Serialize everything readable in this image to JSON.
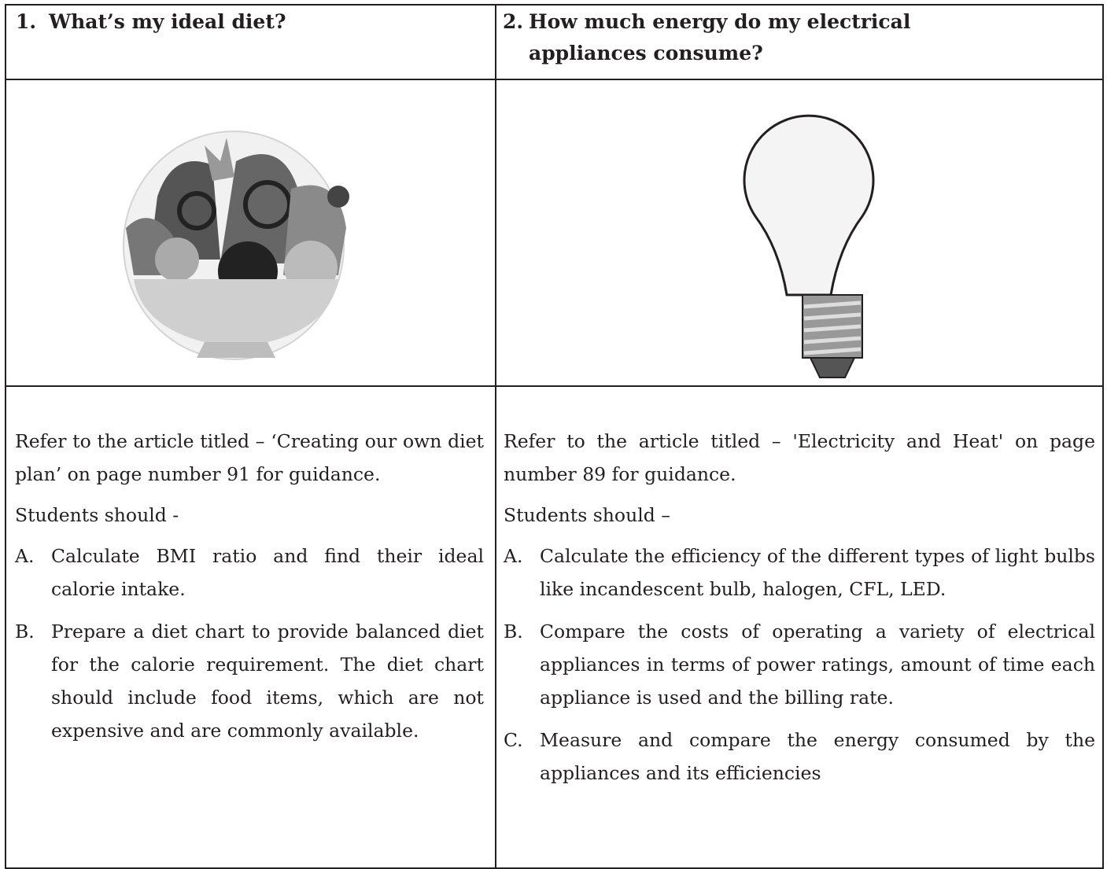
{
  "columns": [
    {
      "heading": {
        "number": "1.",
        "text": "What’s my ideal diet?"
      },
      "intro": "Refer to the article titled – ‘Creating our own diet plan’ on page number 91 for guidance.",
      "lead": "Students should -",
      "items": [
        {
          "letter": "A.",
          "text": "Calculate BMI ratio and find their ideal calorie intake."
        },
        {
          "letter": "B.",
          "text": "Prepare a diet chart to provide balanced diet for the calorie requirement. The diet chart should include food items, which are not expensive and are commonly available."
        }
      ]
    },
    {
      "heading": {
        "number": "2.",
        "text": "How much energy do my electrical appliances consume?"
      },
      "intro": "Refer to the article titled – 'Electricity and Heat' on page number 89 for guidance.",
      "lead": "Students should –",
      "items": [
        {
          "letter": "A.",
          "text": "Calculate the efficiency of the different types of light bulbs like incandescent bulb, halogen, CFL, LED."
        },
        {
          "letter": "B.",
          "text": "Compare the costs of operating a variety of electrical appliances in terms of power ratings, amount of time each appliance is used and the billing rate."
        },
        {
          "letter": "C.",
          "text": "Measure and compare the energy consumed by the appliances and its efficiencies"
        }
      ]
    }
  ]
}
